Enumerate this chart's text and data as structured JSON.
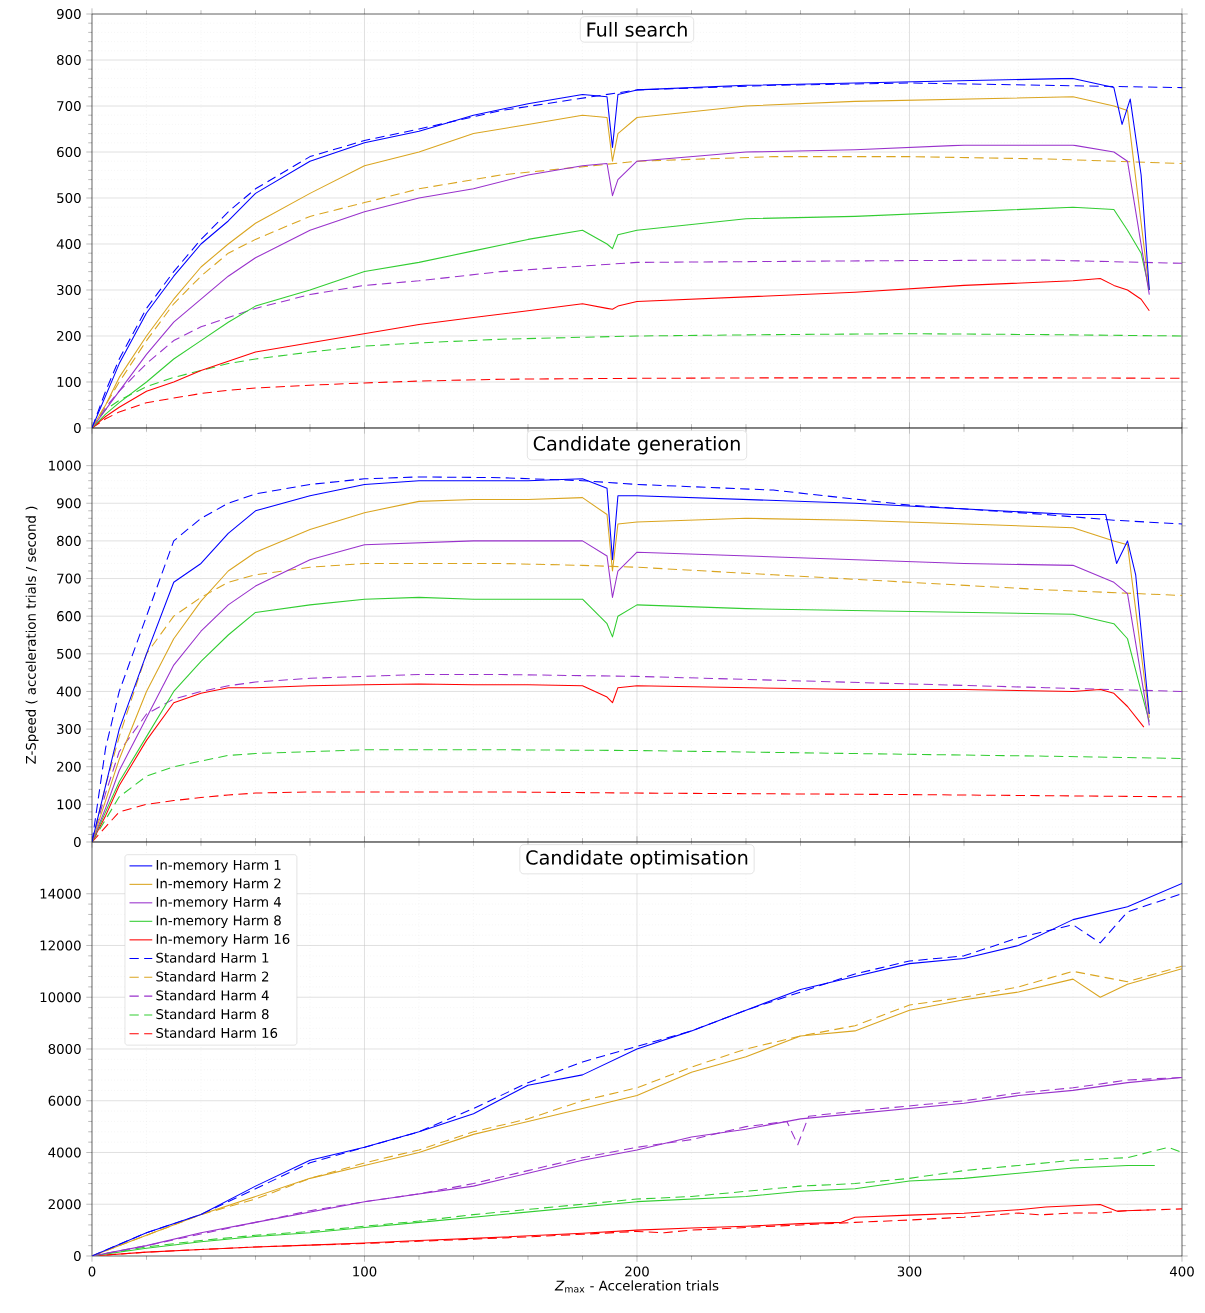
{
  "chart_data": [
    {
      "type": "line",
      "title": "Full search",
      "xlim": [
        0,
        400
      ],
      "ylim": [
        0,
        900
      ],
      "xticks": [
        0,
        100,
        200,
        300,
        400
      ],
      "yticks": [
        0,
        100,
        200,
        300,
        400,
        500,
        600,
        700,
        800,
        900
      ],
      "grid": true,
      "tick_labels": "y",
      "series": [
        {
          "color": "#0000ff",
          "line_style": "solid",
          "x": [
            0,
            5,
            10,
            20,
            30,
            40,
            50,
            60,
            80,
            100,
            120,
            140,
            160,
            180,
            189,
            191,
            193,
            200,
            240,
            280,
            320,
            360,
            375,
            378,
            381,
            385,
            388
          ],
          "values": [
            0,
            70,
            140,
            250,
            330,
            400,
            450,
            510,
            580,
            620,
            645,
            680,
            705,
            725,
            720,
            610,
            725,
            735,
            745,
            750,
            755,
            760,
            740,
            660,
            715,
            550,
            300
          ]
        },
        {
          "color": "#daa520",
          "line_style": "solid",
          "x": [
            0,
            5,
            10,
            20,
            30,
            40,
            50,
            60,
            80,
            100,
            120,
            140,
            160,
            180,
            189,
            191,
            193,
            200,
            240,
            280,
            320,
            360,
            375,
            380,
            388
          ],
          "values": [
            0,
            50,
            110,
            200,
            280,
            350,
            400,
            445,
            510,
            570,
            600,
            640,
            660,
            680,
            675,
            580,
            640,
            675,
            700,
            710,
            715,
            720,
            700,
            690,
            300
          ]
        },
        {
          "color": "#9932cc",
          "line_style": "solid",
          "x": [
            0,
            5,
            10,
            20,
            30,
            40,
            50,
            60,
            80,
            100,
            120,
            140,
            160,
            180,
            189,
            191,
            193,
            200,
            240,
            280,
            320,
            360,
            375,
            380,
            388
          ],
          "values": [
            0,
            40,
            80,
            160,
            230,
            280,
            330,
            370,
            430,
            470,
            500,
            520,
            550,
            570,
            575,
            505,
            540,
            580,
            600,
            605,
            615,
            615,
            600,
            580,
            290
          ]
        },
        {
          "color": "#32cd32",
          "line_style": "solid",
          "x": [
            0,
            5,
            10,
            20,
            30,
            40,
            50,
            60,
            80,
            100,
            120,
            140,
            160,
            180,
            189,
            191,
            193,
            200,
            240,
            280,
            320,
            360,
            375,
            380,
            385,
            388
          ],
          "values": [
            0,
            30,
            55,
            100,
            150,
            190,
            230,
            265,
            300,
            340,
            360,
            385,
            410,
            430,
            400,
            390,
            420,
            430,
            455,
            460,
            470,
            480,
            475,
            430,
            380,
            300
          ]
        },
        {
          "color": "#ff0000",
          "line_style": "solid",
          "x": [
            0,
            5,
            10,
            20,
            30,
            40,
            50,
            60,
            80,
            100,
            120,
            140,
            160,
            180,
            189,
            191,
            193,
            200,
            240,
            280,
            320,
            360,
            370,
            375,
            380,
            385,
            388
          ],
          "values": [
            0,
            25,
            45,
            80,
            100,
            125,
            145,
            165,
            185,
            205,
            225,
            240,
            255,
            270,
            260,
            258,
            265,
            275,
            285,
            295,
            310,
            320,
            325,
            310,
            300,
            280,
            255
          ]
        },
        {
          "color": "#0000ff",
          "line_style": "dashed",
          "x": [
            0,
            5,
            10,
            20,
            30,
            40,
            50,
            60,
            80,
            100,
            120,
            150,
            200,
            250,
            300,
            350,
            400
          ],
          "values": [
            0,
            80,
            150,
            260,
            340,
            410,
            470,
            520,
            590,
            625,
            650,
            690,
            735,
            745,
            750,
            745,
            740
          ]
        },
        {
          "color": "#daa520",
          "line_style": "dashed",
          "x": [
            0,
            5,
            10,
            20,
            30,
            40,
            50,
            60,
            80,
            100,
            120,
            150,
            200,
            250,
            300,
            350,
            400
          ],
          "values": [
            0,
            50,
            100,
            190,
            270,
            330,
            380,
            410,
            460,
            490,
            520,
            550,
            580,
            590,
            590,
            585,
            575
          ]
        },
        {
          "color": "#9932cc",
          "line_style": "dashed",
          "x": [
            0,
            5,
            10,
            20,
            30,
            40,
            50,
            60,
            80,
            100,
            120,
            150,
            200,
            250,
            300,
            350,
            400
          ],
          "values": [
            0,
            45,
            80,
            140,
            190,
            220,
            240,
            260,
            290,
            310,
            320,
            340,
            360,
            362,
            364,
            365,
            358
          ]
        },
        {
          "color": "#32cd32",
          "line_style": "dashed",
          "x": [
            0,
            5,
            10,
            20,
            30,
            40,
            50,
            60,
            80,
            100,
            120,
            150,
            200,
            250,
            300,
            350,
            400
          ],
          "values": [
            0,
            40,
            60,
            90,
            110,
            125,
            140,
            150,
            165,
            178,
            185,
            193,
            200,
            203,
            205,
            203,
            200
          ]
        },
        {
          "color": "#ff0000",
          "line_style": "dashed",
          "x": [
            0,
            5,
            10,
            20,
            30,
            40,
            50,
            60,
            80,
            100,
            120,
            150,
            200,
            250,
            300,
            350,
            400
          ],
          "values": [
            0,
            20,
            35,
            55,
            65,
            75,
            82,
            87,
            93,
            98,
            102,
            106,
            108,
            109,
            109,
            109,
            108
          ]
        }
      ]
    },
    {
      "type": "line",
      "title": "Candidate generation",
      "ylabel": "Z-Speed ( acceleration trials / second )",
      "xlim": [
        0,
        400
      ],
      "ylim": [
        0,
        1100
      ],
      "xticks": [
        0,
        100,
        200,
        300,
        400
      ],
      "yticks": [
        0,
        100,
        200,
        300,
        400,
        500,
        600,
        700,
        800,
        900,
        1000
      ],
      "grid": true,
      "tick_labels": "y",
      "series": [
        {
          "color": "#0000ff",
          "line_style": "solid",
          "x": [
            0,
            5,
            10,
            20,
            30,
            40,
            50,
            60,
            80,
            100,
            120,
            140,
            160,
            180,
            189,
            191,
            193,
            200,
            240,
            280,
            320,
            360,
            372,
            376,
            380,
            383,
            388
          ],
          "values": [
            0,
            150,
            300,
            500,
            690,
            740,
            820,
            880,
            920,
            950,
            960,
            960,
            960,
            965,
            940,
            750,
            920,
            920,
            910,
            900,
            885,
            870,
            870,
            740,
            800,
            710,
            340
          ]
        },
        {
          "color": "#daa520",
          "line_style": "solid",
          "x": [
            0,
            5,
            10,
            20,
            30,
            40,
            50,
            60,
            80,
            100,
            120,
            140,
            160,
            180,
            189,
            191,
            193,
            200,
            240,
            280,
            320,
            360,
            375,
            380,
            388
          ],
          "values": [
            0,
            110,
            220,
            400,
            540,
            640,
            720,
            770,
            830,
            875,
            905,
            910,
            910,
            915,
            870,
            720,
            845,
            850,
            860,
            855,
            845,
            835,
            800,
            790,
            330
          ]
        },
        {
          "color": "#9932cc",
          "line_style": "solid",
          "x": [
            0,
            5,
            10,
            20,
            30,
            40,
            50,
            60,
            80,
            100,
            120,
            140,
            160,
            180,
            189,
            191,
            193,
            200,
            240,
            280,
            320,
            360,
            375,
            380,
            388
          ],
          "values": [
            0,
            90,
            190,
            330,
            470,
            560,
            630,
            680,
            750,
            790,
            795,
            800,
            800,
            800,
            760,
            650,
            720,
            770,
            760,
            750,
            740,
            735,
            690,
            660,
            310
          ]
        },
        {
          "color": "#32cd32",
          "line_style": "solid",
          "x": [
            0,
            5,
            10,
            20,
            30,
            40,
            50,
            60,
            80,
            100,
            120,
            140,
            160,
            180,
            189,
            191,
            193,
            200,
            240,
            280,
            320,
            360,
            375,
            380,
            385,
            388
          ],
          "values": [
            0,
            80,
            160,
            280,
            400,
            480,
            550,
            610,
            630,
            645,
            650,
            645,
            645,
            645,
            580,
            545,
            600,
            630,
            620,
            615,
            610,
            605,
            580,
            540,
            400,
            320
          ]
        },
        {
          "color": "#ff0000",
          "line_style": "solid",
          "x": [
            0,
            5,
            10,
            20,
            30,
            40,
            50,
            60,
            80,
            100,
            120,
            140,
            160,
            180,
            189,
            191,
            193,
            200,
            240,
            280,
            320,
            360,
            370,
            375,
            380,
            386
          ],
          "values": [
            0,
            70,
            150,
            270,
            370,
            395,
            410,
            410,
            415,
            418,
            420,
            418,
            418,
            415,
            385,
            370,
            410,
            415,
            410,
            405,
            405,
            400,
            405,
            395,
            360,
            305
          ]
        },
        {
          "color": "#0000ff",
          "line_style": "dashed",
          "x": [
            0,
            5,
            10,
            20,
            30,
            40,
            50,
            60,
            80,
            100,
            120,
            150,
            180,
            200,
            250,
            300,
            350,
            375,
            400
          ],
          "values": [
            0,
            250,
            400,
            600,
            800,
            860,
            900,
            925,
            950,
            965,
            970,
            968,
            960,
            950,
            935,
            895,
            870,
            855,
            845
          ]
        },
        {
          "color": "#daa520",
          "line_style": "dashed",
          "x": [
            0,
            5,
            10,
            20,
            30,
            40,
            50,
            60,
            80,
            100,
            120,
            150,
            180,
            200,
            250,
            300,
            350,
            400
          ],
          "values": [
            0,
            150,
            280,
            500,
            600,
            650,
            690,
            710,
            730,
            740,
            740,
            740,
            735,
            730,
            710,
            690,
            670,
            655
          ]
        },
        {
          "color": "#9932cc",
          "line_style": "dashed",
          "x": [
            0,
            5,
            10,
            20,
            30,
            40,
            50,
            60,
            80,
            100,
            120,
            150,
            200,
            250,
            300,
            350,
            400
          ],
          "values": [
            0,
            130,
            240,
            340,
            380,
            400,
            415,
            425,
            435,
            440,
            445,
            445,
            440,
            430,
            420,
            410,
            400
          ]
        },
        {
          "color": "#32cd32",
          "line_style": "dashed",
          "x": [
            0,
            5,
            10,
            20,
            30,
            40,
            50,
            60,
            80,
            100,
            120,
            150,
            200,
            250,
            300,
            350,
            400
          ],
          "values": [
            0,
            60,
            120,
            175,
            200,
            215,
            230,
            235,
            240,
            245,
            245,
            245,
            243,
            238,
            233,
            228,
            222
          ]
        },
        {
          "color": "#ff0000",
          "line_style": "dashed",
          "x": [
            0,
            5,
            10,
            20,
            30,
            40,
            50,
            60,
            80,
            100,
            120,
            150,
            200,
            250,
            300,
            350,
            400
          ],
          "values": [
            0,
            40,
            80,
            100,
            110,
            118,
            125,
            130,
            133,
            133,
            133,
            133,
            130,
            128,
            126,
            123,
            120
          ]
        }
      ]
    },
    {
      "type": "line",
      "title": "Candidate optimisation",
      "xlabel": "*Z*$_{max}$ - Acceleration trials",
      "xlim": [
        0,
        400
      ],
      "ylim": [
        0,
        16000
      ],
      "xticks": [
        0,
        100,
        200,
        300,
        400
      ],
      "yticks": [
        0,
        2000,
        4000,
        6000,
        8000,
        10000,
        12000,
        14000
      ],
      "grid": true,
      "legend": "top left",
      "series": [
        {
          "name": "In-memory Harm  1",
          "color": "#0000ff",
          "line_style": "solid",
          "x": [
            0,
            20,
            40,
            60,
            80,
            100,
            120,
            140,
            160,
            180,
            200,
            220,
            240,
            260,
            280,
            300,
            320,
            340,
            360,
            380,
            400
          ],
          "values": [
            0,
            900,
            1600,
            2700,
            3700,
            4200,
            4800,
            5500,
            6600,
            7000,
            8000,
            8700,
            9500,
            10300,
            10800,
            11300,
            11500,
            12000,
            13000,
            13500,
            14400
          ]
        },
        {
          "name": "In-memory Harm  2",
          "color": "#daa520",
          "line_style": "solid",
          "x": [
            0,
            20,
            40,
            60,
            80,
            100,
            120,
            140,
            160,
            180,
            200,
            220,
            240,
            260,
            280,
            300,
            320,
            340,
            360,
            370,
            380,
            400
          ],
          "values": [
            0,
            800,
            1600,
            2300,
            3000,
            3500,
            4000,
            4700,
            5200,
            5700,
            6200,
            7100,
            7700,
            8500,
            8700,
            9500,
            9900,
            10200,
            10700,
            10000,
            10500,
            11100
          ]
        },
        {
          "name": "In-memory Harm  4",
          "color": "#9932cc",
          "line_style": "solid",
          "x": [
            0,
            20,
            40,
            60,
            80,
            100,
            120,
            140,
            160,
            180,
            200,
            220,
            240,
            260,
            280,
            300,
            320,
            340,
            360,
            380,
            400
          ],
          "values": [
            0,
            400,
            900,
            1300,
            1700,
            2100,
            2400,
            2700,
            3200,
            3700,
            4100,
            4600,
            4900,
            5300,
            5500,
            5700,
            5900,
            6200,
            6400,
            6700,
            6900
          ]
        },
        {
          "name": "In-memory Harm  8",
          "color": "#32cd32",
          "line_style": "solid",
          "x": [
            0,
            20,
            40,
            60,
            80,
            100,
            120,
            140,
            160,
            180,
            200,
            220,
            240,
            260,
            280,
            300,
            320,
            340,
            360,
            380,
            390
          ],
          "values": [
            0,
            300,
            550,
            750,
            900,
            1100,
            1300,
            1500,
            1700,
            1900,
            2100,
            2200,
            2300,
            2500,
            2600,
            2900,
            3000,
            3200,
            3400,
            3500,
            3500
          ]
        },
        {
          "name": "In-memory Harm 16",
          "color": "#ff0000",
          "line_style": "solid",
          "x": [
            0,
            20,
            40,
            60,
            80,
            100,
            120,
            140,
            160,
            180,
            200,
            220,
            240,
            260,
            275,
            280,
            300,
            320,
            340,
            350,
            370,
            376,
            388
          ],
          "values": [
            0,
            150,
            250,
            350,
            420,
            500,
            600,
            680,
            780,
            880,
            1000,
            1080,
            1150,
            1250,
            1300,
            1500,
            1580,
            1650,
            1790,
            1890,
            1990,
            1740,
            1780
          ]
        },
        {
          "name": "Standard Harm  1",
          "color": "#0000ff",
          "line_style": "dashed",
          "x": [
            0,
            20,
            40,
            60,
            80,
            100,
            120,
            140,
            160,
            180,
            200,
            220,
            240,
            260,
            280,
            300,
            320,
            340,
            360,
            370,
            380,
            400
          ],
          "values": [
            0,
            900,
            1600,
            2600,
            3600,
            4200,
            4800,
            5700,
            6700,
            7500,
            8100,
            8700,
            9500,
            10200,
            10900,
            11400,
            11600,
            12300,
            12800,
            12100,
            13300,
            14000
          ]
        },
        {
          "name": "Standard Harm  2",
          "color": "#daa520",
          "line_style": "dashed",
          "x": [
            0,
            20,
            40,
            60,
            80,
            100,
            120,
            140,
            160,
            180,
            200,
            220,
            240,
            260,
            280,
            300,
            320,
            340,
            360,
            380,
            400
          ],
          "values": [
            0,
            800,
            1600,
            2200,
            3000,
            3600,
            4100,
            4800,
            5300,
            6000,
            6500,
            7300,
            8000,
            8500,
            8900,
            9700,
            10000,
            10400,
            11000,
            10600,
            11200
          ]
        },
        {
          "name": "Standard Harm  4",
          "color": "#9932cc",
          "line_style": "dashed",
          "x": [
            0,
            20,
            40,
            60,
            80,
            100,
            120,
            140,
            160,
            180,
            200,
            220,
            240,
            255,
            259,
            263,
            280,
            300,
            320,
            340,
            360,
            380,
            400
          ],
          "values": [
            0,
            400,
            850,
            1300,
            1750,
            2100,
            2400,
            2800,
            3300,
            3800,
            4200,
            4500,
            5000,
            5200,
            4300,
            5400,
            5600,
            5800,
            6000,
            6300,
            6500,
            6800,
            6900
          ]
        },
        {
          "name": "Standard Harm  8",
          "color": "#32cd32",
          "line_style": "dashed",
          "x": [
            0,
            20,
            40,
            60,
            80,
            100,
            120,
            140,
            160,
            180,
            200,
            220,
            240,
            260,
            280,
            300,
            320,
            340,
            360,
            380,
            395,
            400
          ],
          "values": [
            0,
            350,
            600,
            800,
            950,
            1150,
            1350,
            1600,
            1800,
            2000,
            2200,
            2300,
            2500,
            2700,
            2800,
            3000,
            3300,
            3500,
            3700,
            3800,
            4200,
            4000
          ]
        },
        {
          "name": "Standard Harm 16",
          "color": "#ff0000",
          "line_style": "dashed",
          "x": [
            0,
            20,
            40,
            60,
            80,
            100,
            120,
            140,
            160,
            180,
            200,
            210,
            220,
            240,
            260,
            280,
            300,
            320,
            340,
            348,
            360,
            370,
            380,
            400
          ],
          "values": [
            0,
            150,
            250,
            350,
            420,
            480,
            570,
            650,
            740,
            840,
            950,
            900,
            1000,
            1100,
            1200,
            1300,
            1390,
            1500,
            1660,
            1590,
            1660,
            1660,
            1750,
            1820
          ]
        }
      ]
    }
  ]
}
